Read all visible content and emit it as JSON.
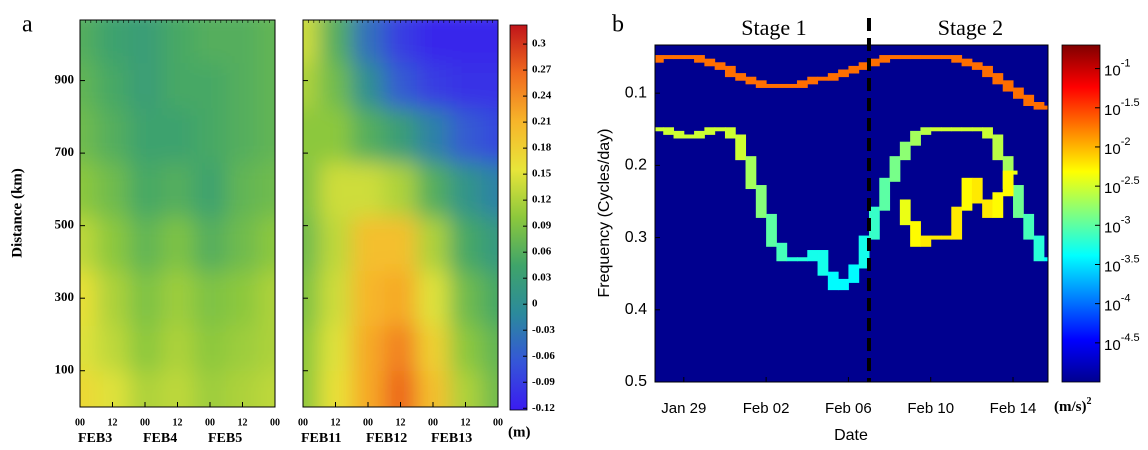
{
  "chart_data": [
    {
      "type": "heatmap",
      "panel_label": "a",
      "ylabel": "Distance (km)",
      "ylim": [
        0,
        1067
      ],
      "yticks": [
        100,
        300,
        500,
        700,
        900
      ],
      "xlim": [
        0,
        72
      ],
      "xticks": [
        {
          "value": 0,
          "label": "00"
        },
        {
          "value": 12,
          "label": "12"
        },
        {
          "value": 24,
          "label": "00"
        },
        {
          "value": 36,
          "label": "12"
        },
        {
          "value": 48,
          "label": "00"
        },
        {
          "value": 60,
          "label": "12"
        },
        {
          "value": 72,
          "label": "00"
        }
      ],
      "x": [
        0,
        12,
        24,
        36,
        48,
        60,
        72
      ],
      "y": [
        50,
        150,
        300,
        450,
        600,
        750,
        900,
        1000
      ],
      "panels": [
        {
          "date_labels": [
            "FEB3",
            "FEB4",
            "FEB5"
          ],
          "z": [
            [
              0.17,
              0.15,
              0.12,
              0.13,
              0.11,
              0.12,
              0.13
            ],
            [
              0.15,
              0.13,
              0.1,
              0.12,
              0.1,
              0.11,
              0.12
            ],
            [
              0.16,
              0.12,
              0.09,
              0.11,
              0.09,
              0.1,
              0.12
            ],
            [
              0.13,
              0.1,
              0.07,
              0.09,
              0.06,
              0.08,
              0.1
            ],
            [
              0.1,
              0.08,
              0.05,
              0.06,
              0.04,
              0.07,
              0.08
            ],
            [
              0.08,
              0.06,
              0.04,
              0.04,
              0.05,
              0.06,
              0.07
            ],
            [
              0.07,
              0.05,
              0.03,
              0.05,
              0.05,
              0.06,
              0.07
            ],
            [
              0.06,
              0.04,
              0.03,
              0.05,
              0.06,
              0.06,
              0.07
            ]
          ]
        },
        {
          "date_labels": [
            "FEB11",
            "FEB12",
            "FEB13"
          ],
          "z": [
            [
              0.1,
              0.16,
              0.22,
              0.27,
              0.2,
              0.12,
              0.08
            ],
            [
              0.1,
              0.15,
              0.22,
              0.25,
              0.18,
              0.1,
              0.07
            ],
            [
              0.09,
              0.14,
              0.21,
              0.22,
              0.15,
              0.08,
              0.05
            ],
            [
              0.08,
              0.13,
              0.2,
              0.2,
              0.12,
              0.05,
              0.02
            ],
            [
              0.09,
              0.14,
              0.14,
              0.12,
              0.06,
              0.01,
              -0.02
            ],
            [
              0.1,
              0.1,
              0.06,
              0.03,
              -0.02,
              -0.06,
              -0.08
            ],
            [
              0.12,
              0.08,
              0.0,
              -0.06,
              -0.09,
              -0.1,
              -0.1
            ],
            [
              0.14,
              0.06,
              -0.04,
              -0.09,
              -0.11,
              -0.11,
              -0.11
            ]
          ]
        }
      ],
      "colorbar": {
        "clim": [
          -0.122,
          0.322
        ],
        "unit": "(m)",
        "ticks": [
          0.3,
          0.27,
          0.24,
          0.21,
          0.18,
          0.15,
          0.12,
          0.09,
          0.06,
          0.03,
          0,
          -0.03,
          -0.06,
          -0.09,
          -0.12
        ],
        "colormap": [
          "#3a1bf0",
          "#3556d8",
          "#2b8a9c",
          "#3fa46a",
          "#8cc83c",
          "#e8e53a",
          "#f7b52a",
          "#f06a1e",
          "#c0141a"
        ]
      }
    },
    {
      "type": "spectrogram",
      "panel_label": "b",
      "xlabel": "Date",
      "ylabel": "Frequency (Cycles/day)",
      "xlim": [
        27.6,
        46.7
      ],
      "xticks": [
        {
          "value": 29,
          "label": "Jan 29"
        },
        {
          "value": 33,
          "label": "Feb 02"
        },
        {
          "value": 37,
          "label": "Feb 06"
        },
        {
          "value": 41,
          "label": "Feb 10"
        },
        {
          "value": 45,
          "label": "Feb 14"
        }
      ],
      "ylim": [
        0.5,
        0.0333
      ],
      "yticks": [
        0.1,
        0.2,
        0.3,
        0.4,
        0.5
      ],
      "background_color": "#00008f",
      "stage_divider": 38,
      "stage_labels": [
        "Stage 1",
        "Stage 2"
      ],
      "ridges": [
        {
          "x": [
            27.5,
            28,
            28.5,
            29,
            29.5,
            30,
            30.5,
            31,
            31.5,
            32,
            32.5,
            33,
            33.5,
            34,
            34.5,
            35,
            35.5,
            36,
            36.5,
            37,
            37.5,
            38,
            38.5,
            39,
            39.5,
            40,
            40.5,
            41,
            41.5,
            42,
            42.5,
            43,
            43.5,
            44,
            44.5,
            45,
            45.5,
            46,
            46.5
          ],
          "values": [
            0.055,
            0.05,
            0.05,
            0.05,
            0.05,
            0.055,
            0.06,
            0.065,
            0.075,
            0.08,
            0.085,
            0.09,
            0.09,
            0.09,
            0.09,
            0.085,
            0.08,
            0.08,
            0.075,
            0.07,
            0.065,
            0.06,
            0.055,
            0.05,
            0.05,
            0.05,
            0.05,
            0.05,
            0.05,
            0.05,
            0.055,
            0.06,
            0.065,
            0.075,
            0.085,
            0.095,
            0.105,
            0.115,
            0.12
          ],
          "power": [
            0.02,
            0.02,
            0.02,
            0.02,
            0.02,
            0.02,
            0.02,
            0.02,
            0.02,
            0.02,
            0.02,
            0.02,
            0.02,
            0.02,
            0.02,
            0.02,
            0.02,
            0.02,
            0.02,
            0.02,
            0.02,
            0.02,
            0.02,
            0.02,
            0.02,
            0.02,
            0.02,
            0.02,
            0.02,
            0.02,
            0.02,
            0.02,
            0.02,
            0.02,
            0.02,
            0.02,
            0.02,
            0.02,
            0.02
          ]
        },
        {
          "x": [
            27.5,
            28,
            28.5,
            29,
            29.5,
            30,
            30.5,
            31,
            31.5,
            32,
            32.5,
            33,
            33.5,
            34,
            34.5,
            35,
            35.5,
            36,
            36.5,
            37,
            37.5,
            38,
            38.5,
            39,
            39.5,
            40,
            40.5,
            41,
            41.5,
            42,
            42.5,
            43,
            43.5,
            44,
            44.5,
            45,
            45.5,
            46,
            46.5
          ],
          "values": [
            0.15,
            0.15,
            0.155,
            0.16,
            0.16,
            0.155,
            0.15,
            0.15,
            0.16,
            0.19,
            0.23,
            0.27,
            0.31,
            0.33,
            0.33,
            0.33,
            0.32,
            0.35,
            0.37,
            0.36,
            0.34,
            0.3,
            0.26,
            0.22,
            0.19,
            0.17,
            0.155,
            0.15,
            0.15,
            0.15,
            0.15,
            0.15,
            0.15,
            0.16,
            0.19,
            0.23,
            0.27,
            0.3,
            0.33
          ],
          "power": [
            0.003,
            0.003,
            0.003,
            0.003,
            0.003,
            0.003,
            0.003,
            0.003,
            0.003,
            0.002,
            0.0015,
            0.001,
            0.0008,
            0.0006,
            0.0006,
            0.0005,
            0.0005,
            0.0004,
            0.0004,
            0.0004,
            0.0005,
            0.0007,
            0.001,
            0.0013,
            0.0016,
            0.002,
            0.0025,
            0.003,
            0.003,
            0.003,
            0.003,
            0.003,
            0.003,
            0.0025,
            0.002,
            0.0012,
            0.0008,
            0.0006,
            0.0004
          ]
        },
        {
          "x": [
            39.5,
            40,
            40.5,
            41,
            41.5,
            42,
            42.5,
            43,
            43.5,
            44,
            44.5,
            45
          ],
          "values": [
            0.25,
            0.28,
            0.31,
            0.3,
            0.3,
            0.3,
            0.26,
            0.22,
            0.25,
            0.27,
            0.24,
            0.21
          ],
          "power": [
            0.004,
            0.005,
            0.006,
            0.006,
            0.006,
            0.006,
            0.005,
            0.006,
            0.006,
            0.005,
            0.005,
            0.004
          ]
        }
      ],
      "colorbar": {
        "scale": "log",
        "clim": [
          1e-05,
          0.2
        ],
        "unit": "(m/s)",
        "unit_exp": "2",
        "ticks": [
          {
            "value": 0.1,
            "label": "10",
            "exp": "-1"
          },
          {
            "value": 0.0316,
            "label": "10",
            "exp": "-1.5"
          },
          {
            "value": 0.01,
            "label": "10",
            "exp": "-2"
          },
          {
            "value": 0.00316,
            "label": "10",
            "exp": "-2.5"
          },
          {
            "value": 0.001,
            "label": "10",
            "exp": "-3"
          },
          {
            "value": 0.000316,
            "label": "10",
            "exp": "-3.5"
          },
          {
            "value": 0.0001,
            "label": "10",
            "exp": "-4"
          },
          {
            "value": 3.16e-05,
            "label": "10",
            "exp": "-4.5"
          }
        ],
        "colormap": [
          "#00008f",
          "#0000ff",
          "#0080ff",
          "#00ffff",
          "#80ff80",
          "#ffff00",
          "#ff8000",
          "#ff0000",
          "#800000"
        ]
      }
    }
  ]
}
